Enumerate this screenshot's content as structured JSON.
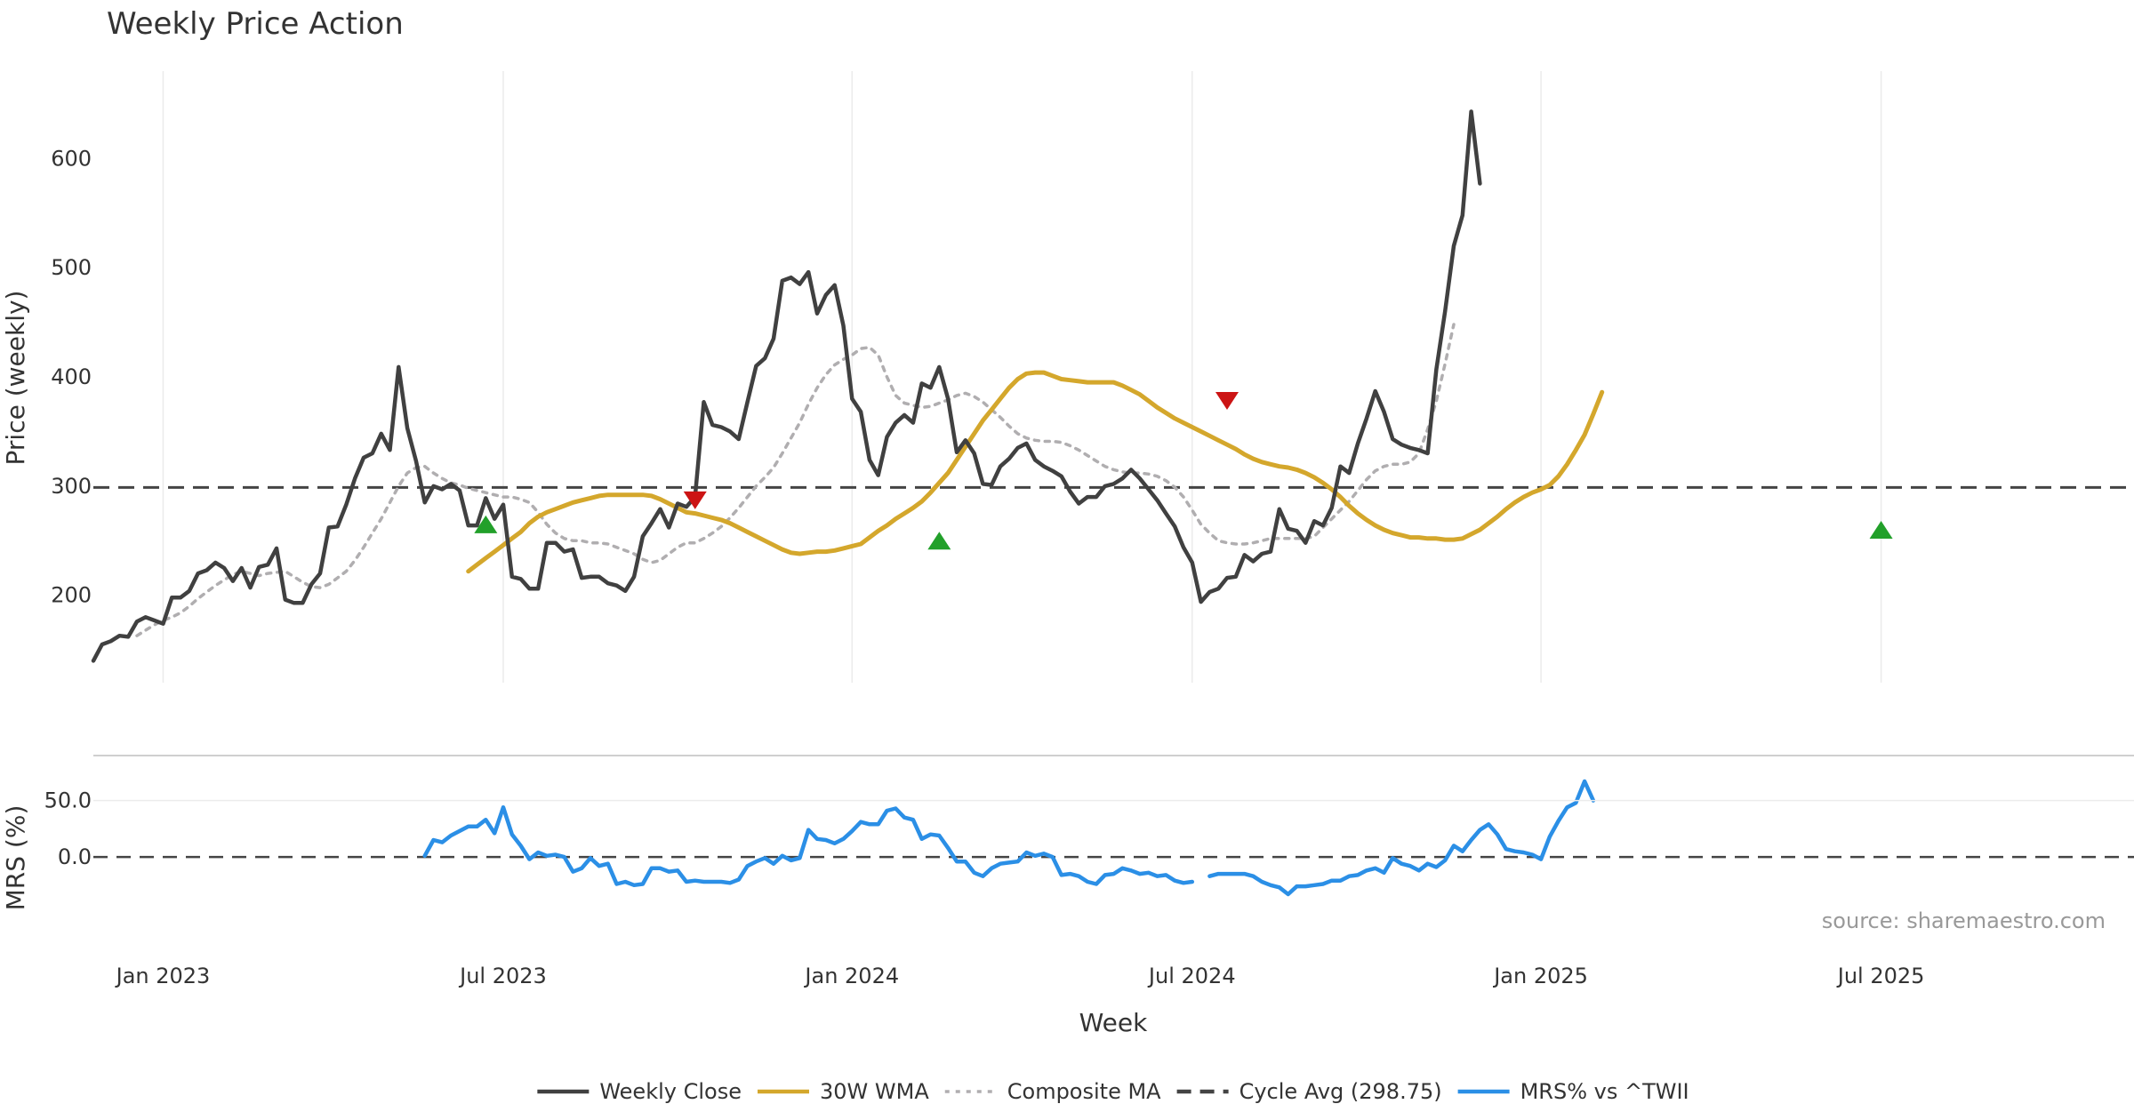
{
  "chart_data": {
    "type": "line",
    "title": "Weekly Price Action",
    "source": "source: sharemaestro.com",
    "xlabel": "Week",
    "x_ticks": [
      "Jan 2023",
      "Jul 2023",
      "Jan 2024",
      "Jul 2024",
      "Jan 2025",
      "Jul 2025"
    ],
    "x_tick_weeks": [
      8,
      47,
      87,
      126,
      166,
      205
    ],
    "x_range": [
      0,
      234
    ],
    "cycle_avg": 298.75,
    "price_panel": {
      "ylabel": "Price (weekly)",
      "ylim": [
        120,
        680
      ],
      "yticks": [
        200,
        300,
        400,
        500,
        600
      ],
      "series": [
        {
          "name": "Weekly Close",
          "color": "#404040",
          "start": 0,
          "values": [
            140,
            155,
            158,
            163,
            162,
            176,
            180,
            177,
            174,
            198,
            198,
            204,
            220,
            223,
            230,
            225,
            213,
            225,
            207,
            226,
            228,
            243,
            196,
            193,
            193,
            210,
            220,
            262,
            263,
            283,
            307,
            326,
            330,
            348,
            333,
            409,
            353,
            323,
            285,
            300,
            297,
            302,
            296,
            264,
            264,
            289,
            270,
            283,
            217,
            215,
            206,
            206,
            248,
            248,
            240,
            242,
            216,
            217,
            217,
            211,
            209,
            204,
            217,
            254,
            266,
            279,
            262,
            284,
            281,
            290,
            377,
            356,
            354,
            350,
            343,
            377,
            410,
            417,
            435,
            488,
            491,
            485,
            496,
            458,
            475,
            484,
            447,
            380,
            368,
            324,
            310,
            345,
            358,
            365,
            358,
            394,
            390,
            409,
            380,
            331,
            342,
            330,
            302,
            301,
            318,
            325,
            335,
            339,
            324,
            318,
            314,
            309,
            295,
            284,
            290,
            290,
            300,
            302,
            307,
            315,
            307,
            297,
            287,
            275,
            263,
            244,
            230,
            194,
            203,
            206,
            216,
            217,
            237,
            231,
            238,
            240,
            279,
            261,
            259,
            248,
            268,
            264,
            280,
            318,
            312,
            339,
            362,
            387,
            368,
            343,
            338,
            335,
            333,
            330,
            407,
            460,
            520,
            548,
            643,
            577
          ]
        },
        {
          "name": "30W WMA",
          "color": "#d4a72c",
          "start": 43,
          "values": [
            222,
            228,
            234,
            240,
            246,
            252,
            258,
            266,
            272,
            276,
            279,
            282,
            285,
            287,
            289,
            291,
            292,
            292,
            292,
            292,
            292,
            291,
            288,
            284,
            280,
            276,
            275,
            273,
            271,
            269,
            266,
            262,
            258,
            254,
            250,
            246,
            242,
            239,
            238,
            239,
            240,
            240,
            241,
            243,
            245,
            247,
            253,
            259,
            264,
            270,
            275,
            280,
            286,
            294,
            303,
            312,
            324,
            336,
            348,
            360,
            370,
            380,
            390,
            398,
            403,
            404,
            404,
            401,
            398,
            397,
            396,
            395,
            395,
            395,
            395,
            392,
            388,
            384,
            378,
            372,
            367,
            362,
            358,
            354,
            350,
            346,
            342,
            338,
            334,
            329,
            325,
            322,
            320,
            318,
            317,
            315,
            312,
            308,
            303,
            297,
            290,
            282,
            275,
            269,
            264,
            260,
            257,
            255,
            253,
            253,
            252,
            252,
            251,
            251,
            252,
            256,
            260,
            266,
            272,
            279,
            285,
            290,
            294,
            297,
            301,
            309,
            320,
            333,
            347,
            366,
            386
          ]
        },
        {
          "name": "Composite MA",
          "color": "#b0aeb0",
          "start": 5,
          "values": [
            163,
            168,
            173,
            177,
            180,
            184,
            190,
            197,
            203,
            209,
            214,
            219,
            222,
            220,
            218,
            220,
            221,
            222,
            217,
            212,
            208,
            207,
            210,
            216,
            222,
            232,
            244,
            257,
            270,
            285,
            300,
            312,
            317,
            318,
            312,
            307,
            303,
            301,
            298,
            296,
            294,
            292,
            290,
            290,
            288,
            285,
            276,
            265,
            257,
            252,
            250,
            250,
            248,
            248,
            247,
            244,
            241,
            238,
            233,
            230,
            232,
            238,
            244,
            248,
            248,
            252,
            257,
            263,
            271,
            280,
            290,
            300,
            308,
            317,
            330,
            344,
            358,
            375,
            390,
            402,
            411,
            416,
            420,
            426,
            427,
            420,
            400,
            383,
            376,
            374,
            372,
            373,
            376,
            379,
            383,
            385,
            382,
            377,
            370,
            363,
            355,
            348,
            344,
            342,
            341,
            341,
            340,
            337,
            333,
            328,
            323,
            318,
            315,
            313,
            312,
            312,
            311,
            309,
            305,
            299,
            290,
            278,
            265,
            257,
            250,
            248,
            247,
            247,
            248,
            250,
            252,
            252,
            252,
            252,
            252,
            254,
            262,
            270,
            278,
            286,
            296,
            306,
            314,
            318,
            320,
            320,
            322,
            330,
            352,
            378,
            412,
            448
          ]
        }
      ]
    },
    "mrs_panel": {
      "ylabel": "MRS (%)",
      "ylim": [
        -48,
        82
      ],
      "yticks": [
        0.0,
        50.0
      ],
      "ytick_labels": [
        "0.0",
        "50.0"
      ],
      "series": [
        {
          "name": "MRS% vs ^TWII",
          "color": "#2b8fe6",
          "start": 38,
          "values": [
            1,
            15,
            13,
            19,
            23,
            27,
            27,
            33,
            21,
            44,
            20,
            10,
            -2,
            4,
            1,
            2,
            0,
            -13,
            -10,
            -1,
            -8,
            -6,
            -24,
            -22,
            -25,
            -24,
            -10,
            -10,
            -13,
            -12,
            -22,
            -21,
            -22,
            -22,
            -22,
            -23,
            -20,
            -8,
            -4,
            -1,
            -6,
            1,
            -3,
            -1,
            24,
            16,
            15,
            12,
            16,
            23,
            31,
            29,
            29,
            41,
            43,
            35,
            33,
            16,
            20,
            19,
            8,
            -4,
            -4,
            -14,
            -17,
            -10,
            -6,
            -5,
            -4,
            4,
            1,
            3,
            0,
            -16,
            -15,
            -17,
            -22,
            -24,
            -16,
            -15,
            -10,
            -12,
            -15,
            -14,
            -17,
            -16,
            -21,
            -23,
            -22,
            null,
            -17,
            -15,
            -15,
            -15,
            -15,
            -17,
            -22,
            -25,
            -27,
            -33,
            -26,
            -26,
            -25,
            -24,
            -21,
            -21,
            -17,
            -16,
            -12,
            -10,
            -14,
            -1,
            -6,
            -8,
            -12,
            -6,
            -9,
            -3,
            10,
            5,
            15,
            24,
            29,
            20,
            7,
            5,
            4,
            2,
            -2,
            18,
            32,
            44,
            48,
            67,
            50
          ]
        }
      ]
    },
    "markers": [
      {
        "type": "buy",
        "week": 45,
        "value": 265,
        "color": "#22a02a"
      },
      {
        "type": "sell",
        "week": 69,
        "value": 287,
        "color": "#cc1414"
      },
      {
        "type": "buy",
        "week": 97,
        "value": 250,
        "color": "#22a02a"
      },
      {
        "type": "sell",
        "week": 130,
        "value": 378,
        "color": "#cc1414"
      },
      {
        "type": "buy",
        "week": 205,
        "value": 260,
        "color": "#22a02a"
      }
    ],
    "legend": [
      {
        "label": "Weekly Close",
        "style": "solid",
        "color": "#404040"
      },
      {
        "label": "30W WMA",
        "style": "solid",
        "color": "#d4a72c"
      },
      {
        "label": "Composite MA",
        "style": "dotted",
        "color": "#b0aeb0"
      },
      {
        "label": "Cycle Avg (298.75)",
        "style": "dashed",
        "color": "#444444"
      },
      {
        "label": "MRS% vs ^TWII",
        "style": "solid",
        "color": "#2b8fe6"
      }
    ]
  }
}
